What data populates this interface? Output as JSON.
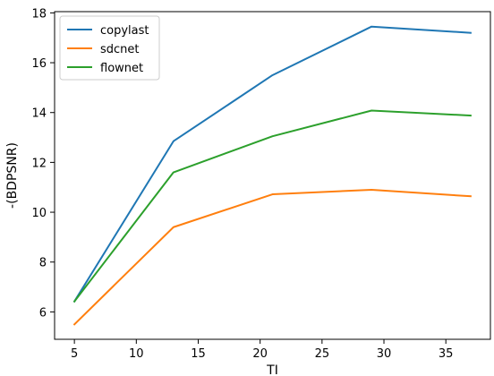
{
  "chart_data": {
    "type": "line",
    "title": "",
    "xlabel": "TI",
    "ylabel": "-(BDPSNR)",
    "x": [
      5,
      13,
      21,
      29,
      37
    ],
    "xlim": [
      3.4,
      38.6
    ],
    "ylim": [
      4.9,
      18.05
    ],
    "xticks": [
      5,
      10,
      15,
      20,
      25,
      30,
      35
    ],
    "yticks": [
      6,
      8,
      10,
      12,
      14,
      16,
      18
    ],
    "grid": false,
    "legend_position": "top-left",
    "series": [
      {
        "name": "copylast",
        "color": "#1f77b4",
        "values": [
          6.42,
          12.85,
          15.5,
          17.45,
          17.2
        ]
      },
      {
        "name": "sdcnet",
        "color": "#ff7f0e",
        "values": [
          5.5,
          9.4,
          10.72,
          10.9,
          10.64
        ]
      },
      {
        "name": "flownet",
        "color": "#2ca02c",
        "values": [
          6.42,
          11.6,
          13.05,
          14.08,
          13.88
        ]
      }
    ]
  }
}
